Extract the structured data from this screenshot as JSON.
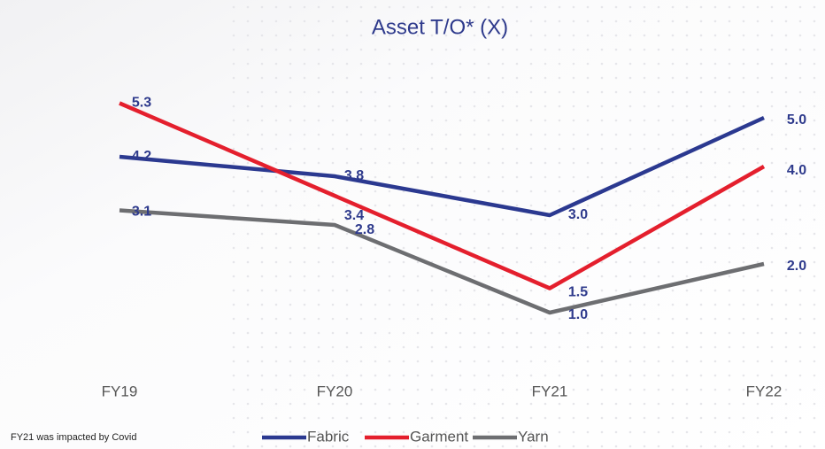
{
  "chart_data": {
    "type": "line",
    "title": "Asset T/O* (X)",
    "categories": [
      "FY19",
      "FY20",
      "FY21",
      "FY22"
    ],
    "series": [
      {
        "name": "Fabric",
        "color": "#2b3990",
        "values": [
          4.2,
          3.8,
          3,
          5
        ],
        "value_labels": [
          "4.2",
          "3.8",
          "3.0",
          "5.0"
        ]
      },
      {
        "name": "Garment",
        "color": "#e41f2d",
        "values": [
          5.3,
          3.4,
          1.5,
          4
        ],
        "value_labels": [
          "5.3",
          "3.4",
          "1.5",
          "4.0"
        ]
      },
      {
        "name": "Yarn",
        "color": "#6d6e71",
        "values": [
          3.1,
          2.8,
          1,
          2
        ],
        "value_labels": [
          "3.1",
          "2.8",
          "1.0",
          "2.0"
        ]
      }
    ],
    "ylim": [
      0,
      6
    ],
    "label_color": "#2e3a8c",
    "annotation": "FY21 was impacted by Covid"
  }
}
